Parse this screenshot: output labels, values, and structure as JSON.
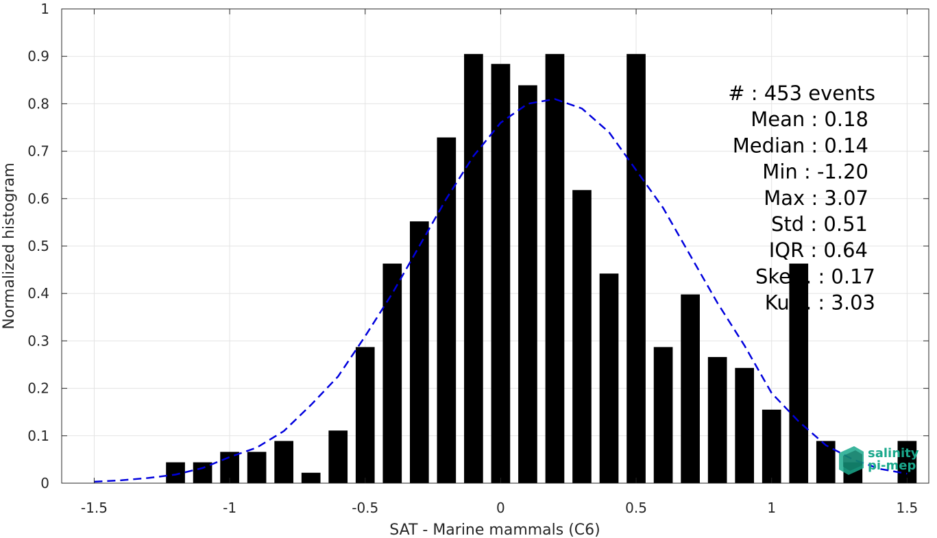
{
  "chart_data": {
    "type": "bar",
    "xlabel": "SAT - Marine mammals (C6)",
    "ylabel": "Normalized histogram",
    "xlim": [
      -1.62,
      1.58
    ],
    "ylim": [
      0,
      1
    ],
    "grid": true,
    "x_ticks": [
      -1.5,
      -1,
      -0.5,
      0,
      0.5,
      1,
      1.5
    ],
    "x_tick_labels": [
      "-1.5",
      "-1",
      "-0.5",
      "0",
      "0.5",
      "1",
      "1.5"
    ],
    "y_ticks": [
      0,
      0.1,
      0.2,
      0.3,
      0.4,
      0.5,
      0.6,
      0.7,
      0.8,
      0.9,
      1
    ],
    "y_tick_labels": [
      "0",
      "0.1",
      "0.2",
      "0.3",
      "0.4",
      "0.5",
      "0.6",
      "0.7",
      "0.8",
      "0.9",
      "1"
    ],
    "bar_width": 0.07,
    "bars": {
      "x": [
        -1.2,
        -1.1,
        -1.0,
        -0.9,
        -0.8,
        -0.7,
        -0.6,
        -0.5,
        -0.4,
        -0.3,
        -0.2,
        -0.1,
        0.0,
        0.1,
        0.2,
        0.3,
        0.4,
        0.5,
        0.6,
        0.7,
        0.8,
        0.9,
        1.0,
        1.1,
        1.2,
        1.3,
        1.5
      ],
      "values": [
        0.044,
        0.044,
        0.066,
        0.066,
        0.089,
        0.022,
        0.111,
        0.287,
        0.463,
        0.552,
        0.729,
        0.905,
        0.884,
        0.839,
        0.905,
        0.618,
        0.442,
        0.905,
        0.287,
        0.398,
        0.266,
        0.243,
        0.155,
        0.463,
        0.089,
        0.044,
        0.089
      ],
      "color": "#000000"
    },
    "fit_curve": {
      "style": "dashed",
      "color": "#0000dd",
      "x": [
        -1.5,
        -1.4,
        -1.3,
        -1.2,
        -1.1,
        -1.0,
        -0.9,
        -0.8,
        -0.7,
        -0.6,
        -0.5,
        -0.4,
        -0.3,
        -0.2,
        -0.1,
        0.0,
        0.1,
        0.2,
        0.3,
        0.4,
        0.5,
        0.6,
        0.7,
        0.8,
        0.9,
        1.0,
        1.1,
        1.2,
        1.3,
        1.4,
        1.5
      ],
      "y": [
        0.003,
        0.006,
        0.011,
        0.018,
        0.032,
        0.055,
        0.075,
        0.11,
        0.165,
        0.225,
        0.31,
        0.4,
        0.5,
        0.6,
        0.69,
        0.76,
        0.8,
        0.81,
        0.79,
        0.74,
        0.66,
        0.58,
        0.48,
        0.38,
        0.29,
        0.19,
        0.13,
        0.08,
        0.05,
        0.03,
        0.02
      ]
    },
    "stats": [
      "#  : 453 events",
      "Mean : 0.18",
      "Median : 0.14",
      "Min : -1.20",
      "Max : 3.07",
      "Std : 0.51",
      "IQR : 0.64",
      "Skew. : 0.17",
      "Kurt. : 3.03"
    ]
  },
  "logo": {
    "line1": "salinity",
    "line2": "pi-mep",
    "text_color": "#1aa88c",
    "box_color": "#1aa88c"
  }
}
